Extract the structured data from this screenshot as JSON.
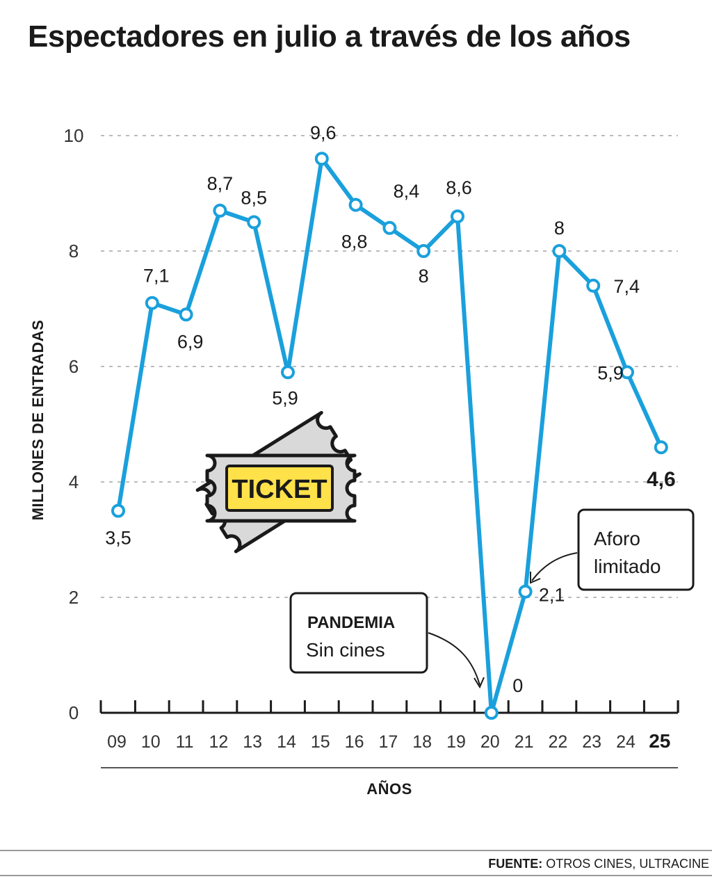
{
  "title": "Espectadores en julio a través de los años",
  "source_label": "FUENTE:",
  "source_text": "OTROS CINES, ULTRACINE",
  "ticket_text": "TICKET",
  "colors": {
    "line": "#1aa0dc",
    "grid": "#bbbbbb",
    "ticket_yellow": "#ffe14a",
    "ticket_gray": "#d9d9d9"
  },
  "chart_data": {
    "type": "line",
    "title": "Espectadores en julio a través de los años",
    "xlabel": "AÑOS",
    "ylabel": "MILLONES DE ENTRADAS",
    "ylim": [
      0,
      10
    ],
    "yticks": [
      "0",
      "2",
      "4",
      "6",
      "8",
      "10"
    ],
    "grid": true,
    "categories": [
      "09",
      "10",
      "11",
      "12",
      "13",
      "14",
      "15",
      "16",
      "17",
      "18",
      "19",
      "20",
      "21",
      "22",
      "23",
      "24",
      "25"
    ],
    "values": [
      3.5,
      7.1,
      6.9,
      8.7,
      8.5,
      5.9,
      9.6,
      8.8,
      8.4,
      8,
      8.6,
      0,
      2.1,
      8,
      7.4,
      5.9,
      4.6
    ],
    "labels": [
      "3,5",
      "7,1",
      "6,9",
      "8,7",
      "8,5",
      "5,9",
      "9,6",
      "8,8",
      "8,4",
      "8",
      "8,6",
      "0",
      "2,1",
      "8",
      "7,4",
      "5,9",
      "4,6"
    ],
    "highlight_category": "25",
    "annotations": [
      {
        "title": "PANDEMIA",
        "text": "Sin cines",
        "category": "20"
      },
      {
        "title": "",
        "text_line1": "Aforo",
        "text_line2": "limitado",
        "category": "21"
      }
    ]
  }
}
